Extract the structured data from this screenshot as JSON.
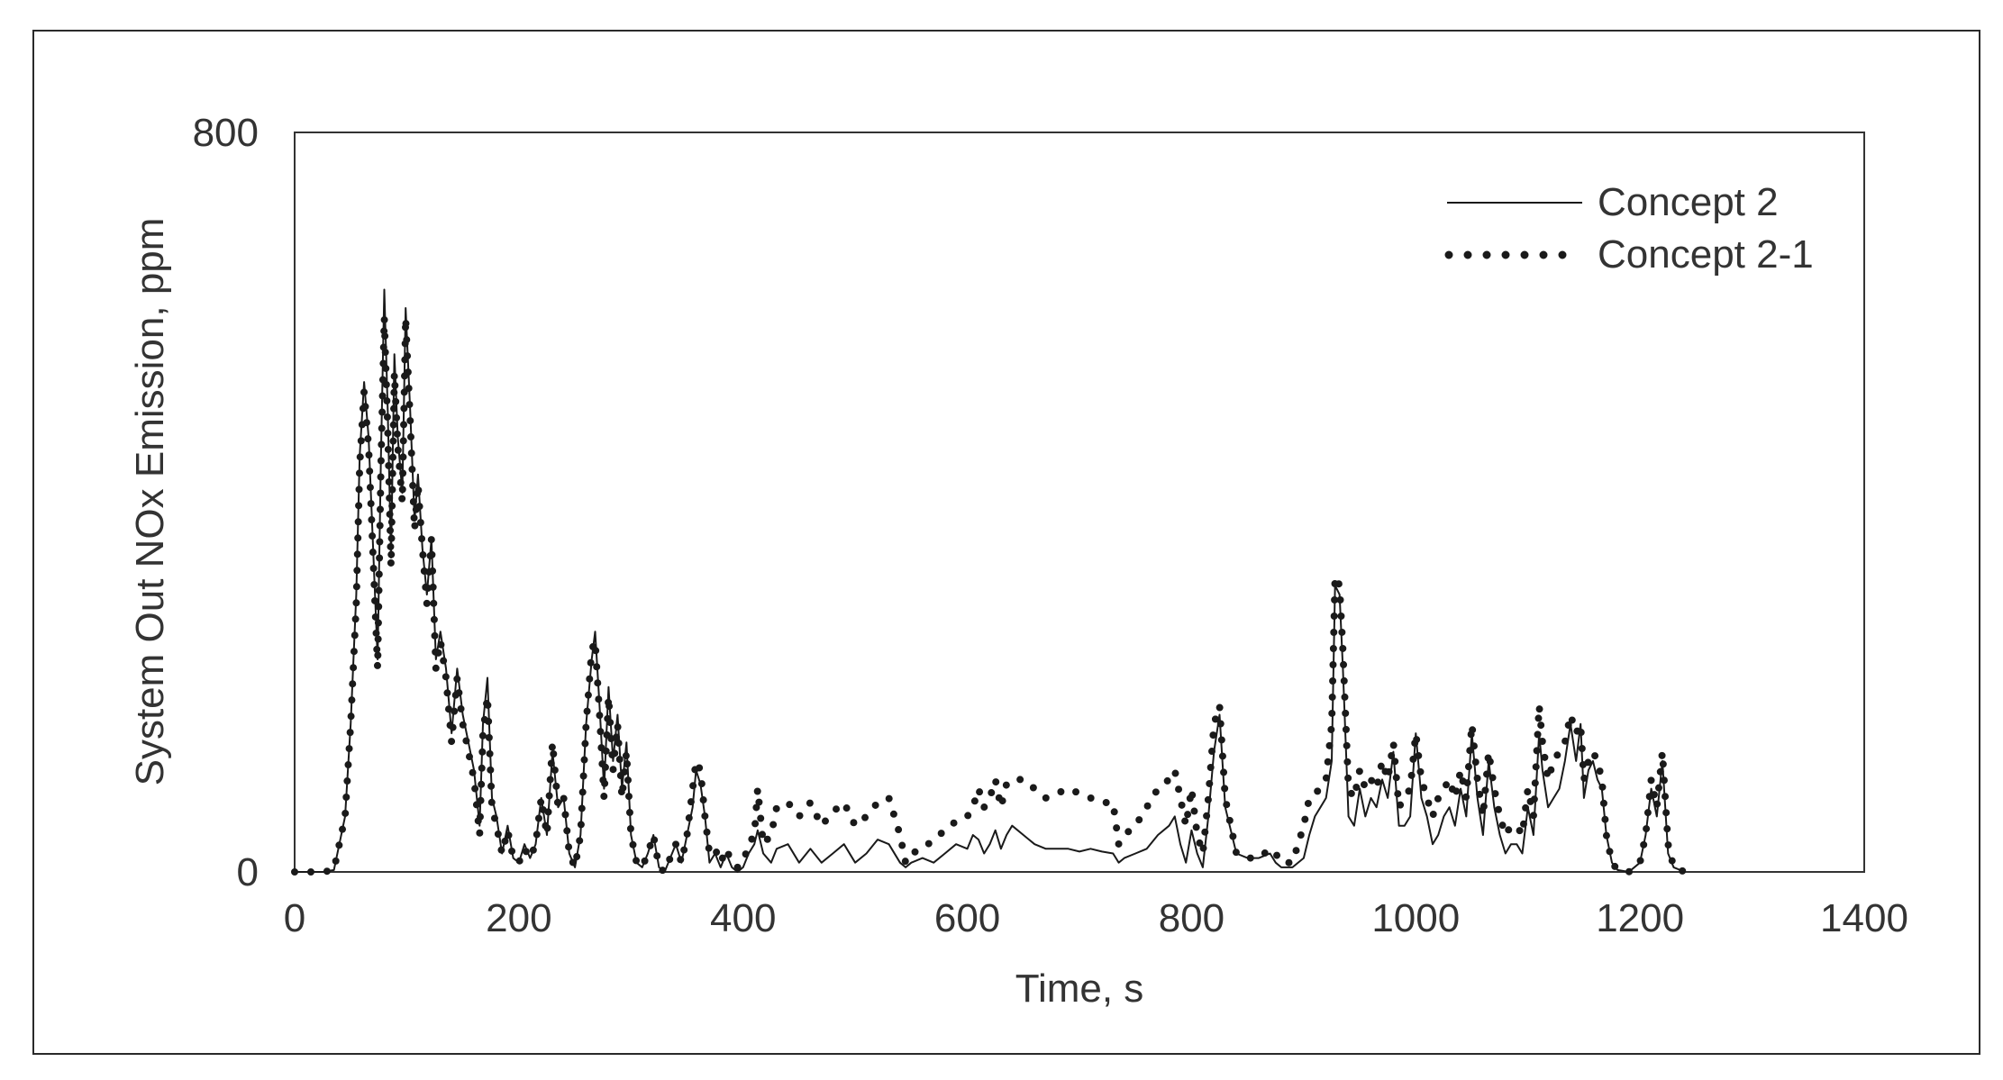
{
  "chart_data": {
    "type": "line",
    "title": "",
    "xlabel": "Time, s",
    "ylabel": "System Out NOx Emission, ppm",
    "xlim": [
      0,
      1400
    ],
    "ylim": [
      0,
      800
    ],
    "xticks": [
      0,
      200,
      400,
      600,
      800,
      1000,
      1200,
      1400
    ],
    "yticks": [
      0,
      800
    ],
    "grid": false,
    "legend_position": "top-right",
    "colors": {
      "line": "#1a1a1a",
      "axis": "#333333",
      "text": "#333333"
    },
    "series": [
      {
        "name": "Concept 2",
        "style": "solid",
        "x": [
          0,
          15,
          25,
          35,
          45,
          50,
          55,
          58,
          62,
          66,
          70,
          74,
          77,
          80,
          83,
          86,
          89,
          92,
          96,
          99,
          103,
          107,
          110,
          114,
          118,
          122,
          126,
          130,
          135,
          140,
          145,
          150,
          155,
          160,
          165,
          168,
          172,
          176,
          180,
          185,
          190,
          195,
          200,
          205,
          210,
          215,
          220,
          225,
          230,
          235,
          240,
          245,
          250,
          255,
          260,
          265,
          268,
          272,
          276,
          280,
          284,
          288,
          292,
          296,
          300,
          305,
          310,
          315,
          320,
          325,
          330,
          335,
          340,
          345,
          350,
          355,
          358,
          362,
          366,
          370,
          375,
          380,
          385,
          390,
          395,
          400,
          405,
          410,
          413,
          418,
          425,
          430,
          440,
          450,
          460,
          470,
          480,
          490,
          500,
          510,
          520,
          530,
          540,
          545,
          550,
          560,
          570,
          580,
          590,
          600,
          605,
          610,
          615,
          620,
          625,
          630,
          635,
          640,
          650,
          660,
          670,
          680,
          690,
          700,
          710,
          720,
          730,
          735,
          740,
          750,
          760,
          770,
          780,
          785,
          790,
          795,
          800,
          805,
          810,
          815,
          820,
          825,
          830,
          840,
          850,
          860,
          870,
          875,
          880,
          890,
          900,
          905,
          910,
          915,
          920,
          925,
          928,
          932,
          935,
          940,
          945,
          950,
          955,
          960,
          965,
          970,
          975,
          980,
          985,
          990,
          995,
          1000,
          1005,
          1010,
          1015,
          1020,
          1025,
          1030,
          1035,
          1040,
          1045,
          1050,
          1055,
          1060,
          1065,
          1070,
          1075,
          1080,
          1085,
          1090,
          1095,
          1100,
          1105,
          1110,
          1113,
          1118,
          1123,
          1128,
          1133,
          1138,
          1143,
          1147,
          1150,
          1154,
          1158,
          1162,
          1166,
          1170,
          1175,
          1180,
          1190,
          1200,
          1205,
          1210,
          1215,
          1220,
          1225,
          1230,
          1240
        ],
        "y": [
          0,
          0,
          0,
          2,
          60,
          160,
          300,
          450,
          530,
          470,
          350,
          230,
          450,
          630,
          500,
          340,
          560,
          470,
          410,
          610,
          500,
          380,
          430,
          350,
          300,
          360,
          230,
          260,
          220,
          150,
          220,
          170,
          140,
          110,
          50,
          160,
          210,
          80,
          60,
          20,
          50,
          15,
          10,
          30,
          15,
          30,
          80,
          40,
          130,
          70,
          80,
          20,
          5,
          40,
          160,
          230,
          260,
          180,
          90,
          200,
          120,
          170,
          90,
          140,
          40,
          10,
          5,
          20,
          40,
          5,
          0,
          15,
          30,
          10,
          40,
          70,
          110,
          95,
          60,
          10,
          20,
          5,
          20,
          5,
          0,
          5,
          20,
          30,
          45,
          20,
          10,
          25,
          30,
          10,
          25,
          10,
          20,
          30,
          10,
          20,
          35,
          30,
          10,
          5,
          10,
          15,
          10,
          20,
          30,
          25,
          40,
          35,
          20,
          30,
          45,
          25,
          40,
          50,
          40,
          30,
          25,
          25,
          25,
          22,
          25,
          22,
          20,
          10,
          15,
          20,
          25,
          40,
          50,
          60,
          30,
          10,
          45,
          20,
          5,
          60,
          130,
          170,
          70,
          20,
          15,
          15,
          20,
          10,
          5,
          5,
          15,
          40,
          60,
          70,
          80,
          120,
          310,
          300,
          220,
          60,
          50,
          90,
          60,
          80,
          70,
          100,
          80,
          130,
          50,
          50,
          60,
          150,
          80,
          60,
          30,
          40,
          60,
          70,
          50,
          90,
          60,
          150,
          80,
          40,
          120,
          70,
          40,
          20,
          30,
          30,
          20,
          70,
          40,
          150,
          110,
          70,
          80,
          90,
          120,
          160,
          120,
          160,
          80,
          110,
          120,
          100,
          90,
          40,
          10,
          2,
          0,
          10,
          40,
          90,
          60,
          120,
          20,
          5,
          0
        ]
      },
      {
        "name": "Concept 2-1",
        "style": "dotted",
        "x": [
          0,
          15,
          25,
          35,
          45,
          50,
          55,
          58,
          62,
          66,
          70,
          74,
          77,
          80,
          83,
          86,
          89,
          92,
          96,
          99,
          103,
          107,
          110,
          114,
          118,
          122,
          126,
          130,
          135,
          140,
          145,
          150,
          155,
          160,
          165,
          168,
          172,
          176,
          180,
          185,
          190,
          195,
          200,
          205,
          210,
          215,
          220,
          225,
          230,
          235,
          240,
          245,
          250,
          255,
          260,
          265,
          268,
          272,
          276,
          280,
          284,
          288,
          292,
          296,
          300,
          305,
          310,
          315,
          320,
          325,
          330,
          335,
          340,
          345,
          350,
          355,
          358,
          362,
          366,
          370,
          375,
          380,
          385,
          390,
          395,
          400,
          405,
          410,
          413,
          418,
          425,
          430,
          440,
          450,
          460,
          470,
          480,
          490,
          500,
          510,
          520,
          530,
          540,
          545,
          550,
          560,
          570,
          580,
          590,
          600,
          605,
          610,
          615,
          620,
          625,
          630,
          635,
          640,
          650,
          660,
          670,
          680,
          690,
          700,
          710,
          720,
          730,
          735,
          740,
          750,
          760,
          770,
          780,
          785,
          790,
          795,
          800,
          805,
          810,
          815,
          820,
          825,
          830,
          840,
          850,
          860,
          870,
          875,
          880,
          890,
          900,
          905,
          910,
          915,
          920,
          925,
          928,
          932,
          935,
          940,
          945,
          950,
          955,
          960,
          965,
          970,
          975,
          980,
          985,
          990,
          995,
          1000,
          1005,
          1010,
          1015,
          1020,
          1025,
          1030,
          1035,
          1040,
          1045,
          1050,
          1055,
          1060,
          1065,
          1070,
          1075,
          1080,
          1085,
          1090,
          1095,
          1100,
          1105,
          1110,
          1113,
          1118,
          1123,
          1128,
          1133,
          1138,
          1143,
          1147,
          1150,
          1154,
          1158,
          1162,
          1166,
          1170,
          1175,
          1180,
          1190,
          1200,
          1205,
          1210,
          1215,
          1220,
          1225,
          1230,
          1240
        ],
        "y": [
          0,
          0,
          0,
          2,
          60,
          160,
          290,
          440,
          520,
          460,
          340,
          220,
          440,
          600,
          480,
          330,
          540,
          460,
          400,
          600,
          490,
          370,
          420,
          350,
          290,
          360,
          220,
          250,
          210,
          140,
          210,
          160,
          130,
          100,
          40,
          150,
          190,
          70,
          50,
          20,
          45,
          15,
          10,
          25,
          15,
          30,
          80,
          40,
          140,
          70,
          80,
          20,
          5,
          40,
          160,
          240,
          250,
          170,
          80,
          190,
          110,
          160,
          80,
          130,
          40,
          10,
          5,
          20,
          40,
          5,
          0,
          15,
          30,
          10,
          40,
          90,
          120,
          110,
          60,
          20,
          25,
          10,
          25,
          10,
          5,
          10,
          30,
          40,
          90,
          30,
          40,
          70,
          75,
          60,
          75,
          50,
          65,
          75,
          50,
          60,
          75,
          80,
          40,
          10,
          20,
          25,
          35,
          45,
          55,
          60,
          70,
          90,
          70,
          80,
          100,
          70,
          95,
          100,
          100,
          90,
          80,
          85,
          90,
          85,
          80,
          75,
          75,
          30,
          40,
          50,
          70,
          90,
          100,
          110,
          80,
          50,
          90,
          40,
          20,
          80,
          160,
          180,
          80,
          20,
          15,
          15,
          25,
          20,
          10,
          10,
          50,
          80,
          85,
          90,
          100,
          160,
          320,
          310,
          240,
          90,
          80,
          110,
          90,
          100,
          90,
          120,
          100,
          140,
          70,
          80,
          90,
          150,
          100,
          80,
          60,
          80,
          90,
          100,
          80,
          110,
          80,
          160,
          100,
          60,
          130,
          90,
          60,
          40,
          50,
          50,
          40,
          90,
          60,
          180,
          140,
          100,
          120,
          130,
          140,
          170,
          150,
          160,
          100,
          120,
          130,
          120,
          100,
          40,
          10,
          2,
          0,
          10,
          40,
          100,
          70,
          130,
          30,
          5,
          0
        ]
      }
    ]
  }
}
